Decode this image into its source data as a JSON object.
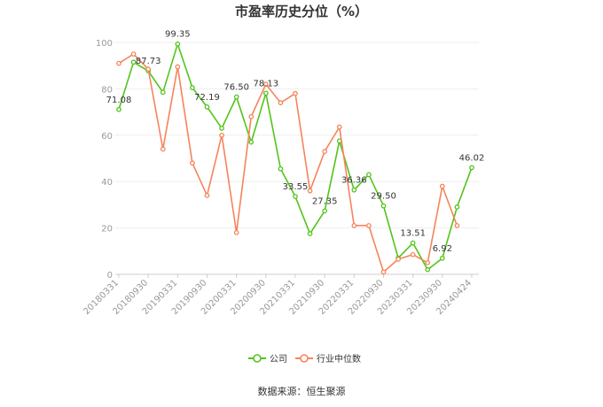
{
  "chart_data": {
    "type": "line",
    "title": "市盈率历史分位（%）",
    "xlabel": "",
    "ylabel": "",
    "ylim": [
      0,
      100
    ],
    "yticks": [
      0,
      20,
      40,
      60,
      80,
      100
    ],
    "grid": true,
    "legend_position": "bottom",
    "x_tick_labels": [
      "20180331",
      "20180930",
      "20190331",
      "20190930",
      "20200331",
      "20200930",
      "20210331",
      "20210930",
      "20220331",
      "20220930",
      "20230331",
      "20230930",
      "20240424"
    ],
    "series": [
      {
        "name": "公司",
        "color": "#52c41a",
        "values": [
          71.08,
          91.5,
          87.73,
          78.5,
          99.35,
          80.5,
          72.19,
          63.0,
          76.5,
          57.0,
          78.13,
          45.5,
          33.55,
          17.5,
          27.35,
          57.5,
          36.36,
          43.0,
          29.5,
          7.0,
          13.51,
          2.0,
          6.92,
          29.0,
          46.02
        ],
        "value_labels": [
          {
            "i": 0,
            "text": "71.08"
          },
          {
            "i": 2,
            "text": "87.73"
          },
          {
            "i": 4,
            "text": "99.35"
          },
          {
            "i": 6,
            "text": "72.19"
          },
          {
            "i": 8,
            "text": "76.50"
          },
          {
            "i": 10,
            "text": "78.13"
          },
          {
            "i": 12,
            "text": "33.55"
          },
          {
            "i": 14,
            "text": "27.35"
          },
          {
            "i": 16,
            "text": "36.36"
          },
          {
            "i": 18,
            "text": "29.50"
          },
          {
            "i": 20,
            "text": "13.51"
          },
          {
            "i": 22,
            "text": "6.92"
          },
          {
            "i": 24,
            "text": "46.02"
          }
        ]
      },
      {
        "name": "行业中位数",
        "color": "#f5845c",
        "values": [
          91.0,
          95.0,
          88.5,
          54.0,
          89.5,
          48.0,
          34.0,
          60.0,
          18.0,
          68.0,
          82.0,
          74.0,
          78.0,
          36.0,
          53.0,
          63.5,
          21.0,
          21.0,
          1.0,
          6.5,
          8.5,
          5.0,
          38.0,
          21.0
        ]
      }
    ],
    "source": "数据来源：恒生聚源"
  }
}
